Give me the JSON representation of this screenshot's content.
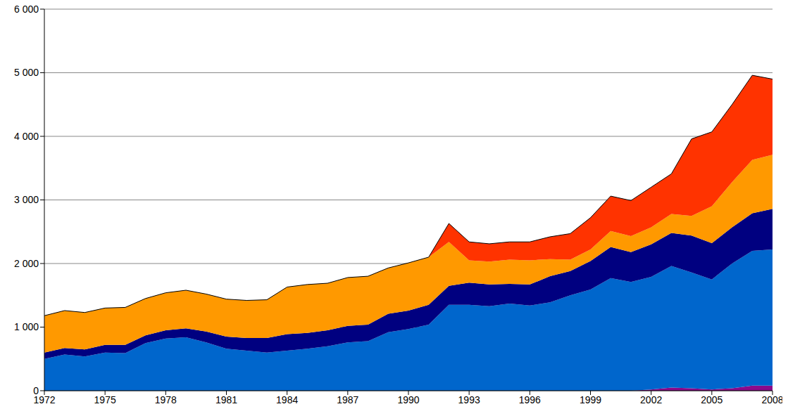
{
  "chart_data": {
    "type": "area",
    "stacked": true,
    "grid": true,
    "x": [
      1972,
      1973,
      1974,
      1975,
      1976,
      1977,
      1978,
      1979,
      1980,
      1981,
      1982,
      1983,
      1984,
      1985,
      1986,
      1987,
      1988,
      1989,
      1990,
      1991,
      1992,
      1993,
      1994,
      1995,
      1996,
      1997,
      1998,
      1999,
      2000,
      2001,
      2002,
      2003,
      2004,
      2005,
      2006,
      2007,
      2008
    ],
    "xlim": [
      1972,
      2008
    ],
    "xticks": [
      1972,
      1975,
      1978,
      1981,
      1984,
      1987,
      1990,
      1993,
      1996,
      1999,
      2002,
      2005,
      2008
    ],
    "ylim": [
      0,
      6000
    ],
    "yticks": [
      0,
      {
        "value": 1000,
        "label": "1 000"
      },
      {
        "value": 2000,
        "label": "2 000"
      },
      {
        "value": 3000,
        "label": "3 000"
      },
      {
        "value": 4000,
        "label": "4 000"
      },
      {
        "value": 5000,
        "label": "5 000"
      },
      {
        "value": 6000,
        "label": "6 000"
      }
    ],
    "series": [
      {
        "color": "#8B0A8B",
        "values": [
          0,
          0,
          0,
          0,
          0,
          0,
          0,
          0,
          0,
          0,
          0,
          0,
          0,
          0,
          0,
          0,
          0,
          0,
          0,
          0,
          0,
          0,
          0,
          0,
          0,
          0,
          0,
          0,
          0,
          0,
          20,
          50,
          40,
          20,
          40,
          80,
          80
        ]
      },
      {
        "color": "#0066CC",
        "values": [
          500,
          570,
          540,
          600,
          590,
          750,
          820,
          840,
          760,
          660,
          630,
          600,
          630,
          660,
          700,
          760,
          780,
          920,
          970,
          1040,
          1350,
          1350,
          1330,
          1370,
          1340,
          1390,
          1500,
          1590,
          1770,
          1710,
          1770,
          1910,
          1820,
          1730,
          1960,
          2120,
          2140
        ]
      },
      {
        "color": "#000080",
        "values": [
          100,
          100,
          110,
          120,
          130,
          120,
          130,
          140,
          170,
          190,
          200,
          230,
          260,
          250,
          250,
          260,
          260,
          290,
          290,
          310,
          300,
          350,
          340,
          310,
          330,
          410,
          380,
          450,
          490,
          470,
          510,
          520,
          580,
          570,
          570,
          590,
          640
        ]
      },
      {
        "color": "#FF9900",
        "values": [
          580,
          590,
          580,
          580,
          590,
          580,
          590,
          600,
          590,
          590,
          590,
          600,
          740,
          760,
          740,
          760,
          760,
          720,
          750,
          750,
          690,
          350,
          360,
          380,
          380,
          270,
          180,
          180,
          250,
          250,
          270,
          300,
          310,
          580,
          710,
          840,
          850
        ]
      },
      {
        "color": "#FF3300",
        "values": [
          0,
          0,
          0,
          0,
          0,
          0,
          0,
          0,
          0,
          0,
          0,
          0,
          0,
          0,
          0,
          0,
          0,
          0,
          0,
          0,
          290,
          290,
          280,
          280,
          290,
          350,
          410,
          500,
          550,
          560,
          630,
          630,
          1210,
          1170,
          1220,
          1330,
          1190
        ]
      }
    ]
  }
}
